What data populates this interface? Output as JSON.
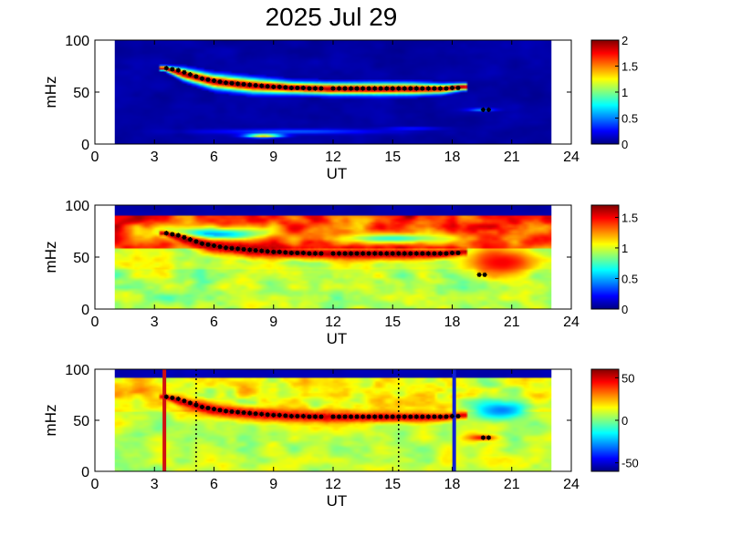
{
  "figure": {
    "title": "2025 Jul 29"
  },
  "chart_data": [
    {
      "type": "heatmap",
      "panel": "top",
      "xlabel": "UT",
      "ylabel": "mHz",
      "xlim": [
        0,
        24
      ],
      "ylim": [
        0,
        100
      ],
      "x_ticks": [
        "0",
        "3",
        "6",
        "9",
        "12",
        "15",
        "18",
        "21",
        "24"
      ],
      "y_ticks": [
        "0",
        "50",
        "100"
      ],
      "data_window_ut": [
        1,
        23
      ],
      "colorbar": {
        "min": 0,
        "max": 2,
        "ticks": [
          "0",
          "0.5",
          "1",
          "1.5",
          "2"
        ],
        "colormap": "jet"
      },
      "band": {
        "ut": [
          3.5,
          4.5,
          6,
          8,
          10,
          12,
          14,
          16,
          17.5,
          18.5
        ],
        "freq": [
          73,
          67,
          60,
          56,
          54,
          53,
          53,
          53,
          53,
          55
        ],
        "halfwidth": [
          2,
          5,
          6,
          6,
          5,
          5,
          5,
          5,
          4,
          3
        ],
        "level": 2
      },
      "patches": [
        {
          "ut": 10,
          "freq": 12,
          "ut_width": 9,
          "freq_width": 5,
          "level": 0.45
        },
        {
          "ut": 8.5,
          "freq": 8,
          "ut_width": 2,
          "freq_width": 4,
          "level": 1.4
        },
        {
          "ut": 16,
          "freq": 15,
          "ut_width": 3,
          "freq_width": 3,
          "level": 0.35
        },
        {
          "ut": 19.5,
          "freq": 33,
          "ut_width": 1.5,
          "freq_width": 3,
          "level": 0.6
        }
      ],
      "markers": {
        "ut": [
          3.6,
          3.9,
          4.2,
          4.5,
          4.8,
          5.1,
          5.4,
          5.7,
          6,
          6.3,
          6.6,
          6.9,
          7.2,
          7.5,
          7.8,
          8.1,
          8.4,
          8.7,
          9,
          9.3,
          9.6,
          9.9,
          10.2,
          10.5,
          10.8,
          11.1,
          11.4,
          12,
          12.3,
          12.6,
          12.9,
          13.2,
          13.5,
          13.8,
          14.1,
          14.4,
          14.7,
          15,
          15.3,
          15.6,
          15.9,
          16.2,
          16.5,
          16.8,
          17.1,
          17.4,
          17.7,
          18,
          18.3
        ],
        "freq": [
          73,
          72,
          71,
          69,
          67,
          65,
          63,
          62,
          61,
          60,
          59,
          58.5,
          58,
          57.5,
          57,
          56.5,
          56,
          55.5,
          55,
          55,
          54.5,
          54,
          54,
          54,
          53.5,
          53.5,
          53.5,
          53.5,
          53.5,
          53.5,
          53.5,
          53.5,
          53.5,
          53.5,
          53.5,
          53.5,
          53.5,
          53.5,
          53.5,
          53.5,
          53.5,
          53.5,
          53.5,
          53.5,
          53.5,
          53.5,
          53.5,
          54,
          54
        ]
      },
      "isolated_markers": {
        "ut": [
          19.7
        ],
        "freq": [
          33
        ]
      },
      "vlines": []
    },
    {
      "type": "heatmap",
      "panel": "middle",
      "xlabel": "UT",
      "ylabel": "mHz",
      "xlim": [
        0,
        24
      ],
      "ylim": [
        0,
        100
      ],
      "x_ticks": [
        "0",
        "3",
        "6",
        "9",
        "12",
        "15",
        "18",
        "21",
        "24"
      ],
      "y_ticks": [
        "0",
        "50",
        "100"
      ],
      "data_window_ut": [
        1,
        23
      ],
      "colorbar": {
        "min": 0,
        "max": 1.7,
        "ticks": [
          "0",
          "0.5",
          "1",
          "1.5"
        ],
        "colormap": "jet"
      },
      "band": {
        "ut": [
          3.5,
          4.5,
          6,
          8,
          10,
          12,
          14,
          16,
          17.5,
          18.5
        ],
        "freq": [
          73,
          67,
          60,
          56,
          54,
          53,
          53,
          53,
          53,
          55
        ],
        "halfwidth": [
          2,
          5,
          6,
          6,
          5,
          5,
          5,
          5,
          4,
          3
        ],
        "level": 1.7
      },
      "patches": [
        {
          "ut": 6,
          "freq": 72,
          "ut_width": 6,
          "freq_width": 14,
          "level": 0.5
        },
        {
          "ut": 15,
          "freq": 68,
          "ut_width": 6,
          "freq_width": 10,
          "level": 0.7
        },
        {
          "ut": 20.5,
          "freq": 45,
          "ut_width": 4,
          "freq_width": 30,
          "level": 1.5
        }
      ],
      "markers": {
        "ut": [
          3.6,
          3.9,
          4.2,
          4.5,
          4.8,
          5.1,
          5.4,
          5.7,
          6,
          6.3,
          6.6,
          6.9,
          7.2,
          7.5,
          7.8,
          8.1,
          8.4,
          8.7,
          9,
          9.3,
          9.6,
          9.9,
          10.2,
          10.5,
          10.8,
          11.1,
          11.4,
          12,
          12.3,
          12.6,
          12.9,
          13.2,
          13.5,
          13.8,
          14.1,
          14.4,
          14.7,
          15,
          15.3,
          15.6,
          15.9,
          16.2,
          16.5,
          16.8,
          17.1,
          17.4,
          17.7,
          18,
          18.3
        ],
        "freq": [
          73,
          72,
          71,
          69,
          67,
          65,
          63,
          62,
          61,
          60,
          59,
          58.5,
          58,
          57.5,
          57,
          56.5,
          56,
          55.5,
          55,
          55,
          54.5,
          54,
          54,
          54,
          53.5,
          53.5,
          53.5,
          53.5,
          53.5,
          53.5,
          53.5,
          53.5,
          53.5,
          53.5,
          53.5,
          53.5,
          53.5,
          53.5,
          53.5,
          53.5,
          53.5,
          53.5,
          53.5,
          53.5,
          53.5,
          53.5,
          53.5,
          54,
          54
        ]
      },
      "isolated_markers": {
        "ut": [
          19.5
        ],
        "freq": [
          33
        ]
      },
      "vlines": []
    },
    {
      "type": "heatmap",
      "panel": "bottom",
      "xlabel": "UT",
      "ylabel": "mHz",
      "xlim": [
        0,
        24
      ],
      "ylim": [
        0,
        100
      ],
      "x_ticks": [
        "0",
        "3",
        "6",
        "9",
        "12",
        "15",
        "18",
        "21",
        "24"
      ],
      "y_ticks": [
        "0",
        "50",
        "100"
      ],
      "data_window_ut": [
        1,
        23
      ],
      "colorbar": {
        "min": -60,
        "max": 60,
        "ticks": [
          "-50",
          "0",
          "50"
        ],
        "colormap": "jet"
      },
      "band": {
        "ut": [
          3.5,
          4.5,
          6,
          8,
          10,
          12,
          14,
          16,
          17.5,
          18.5
        ],
        "freq": [
          73,
          67,
          60,
          56,
          54,
          53,
          53,
          53,
          53,
          55
        ],
        "halfwidth": [
          2,
          5,
          6,
          6,
          5,
          5,
          5,
          5,
          4,
          3
        ],
        "level": 55
      },
      "patches": [
        {
          "ut": 20.5,
          "freq": 60,
          "ut_width": 3,
          "freq_width": 20,
          "level": -30
        },
        {
          "ut": 19.5,
          "freq": 33,
          "ut_width": 1.5,
          "freq_width": 6,
          "level": 45
        }
      ],
      "markers": {
        "ut": [
          3.6,
          3.9,
          4.2,
          4.5,
          4.8,
          5.1,
          5.4,
          5.7,
          6,
          6.3,
          6.6,
          6.9,
          7.2,
          7.5,
          7.8,
          8.1,
          8.4,
          8.7,
          9,
          9.3,
          9.6,
          9.9,
          10.2,
          10.5,
          10.8,
          11.1,
          11.4,
          12,
          12.3,
          12.6,
          12.9,
          13.2,
          13.5,
          13.8,
          14.1,
          14.4,
          14.7,
          15,
          15.3,
          15.6,
          15.9,
          16.2,
          16.5,
          16.8,
          17.1,
          17.4,
          17.7,
          18,
          18.3
        ],
        "freq": [
          73,
          72,
          71,
          69,
          67,
          65,
          63,
          62,
          61,
          60,
          59,
          58.5,
          58,
          57.5,
          57,
          56.5,
          56,
          55.5,
          55,
          55,
          54.5,
          54,
          54,
          54,
          53.5,
          53.5,
          53.5,
          53.5,
          53.5,
          53.5,
          53.5,
          53.5,
          53.5,
          53.5,
          53.5,
          53.5,
          53.5,
          53.5,
          53.5,
          53.5,
          53.5,
          53.5,
          53.5,
          53.5,
          53.5,
          53.5,
          53.5,
          54,
          54
        ]
      },
      "isolated_markers": {
        "ut": [
          19.7
        ],
        "freq": [
          33
        ]
      },
      "vlines": [
        {
          "ut": 3.5,
          "color": "#d01010",
          "style": "solid"
        },
        {
          "ut": 5.1,
          "color": "#000000",
          "style": "dotted"
        },
        {
          "ut": 15.3,
          "color": "#000000",
          "style": "dotted"
        },
        {
          "ut": 18.1,
          "color": "#1020d0",
          "style": "solid"
        }
      ]
    }
  ]
}
